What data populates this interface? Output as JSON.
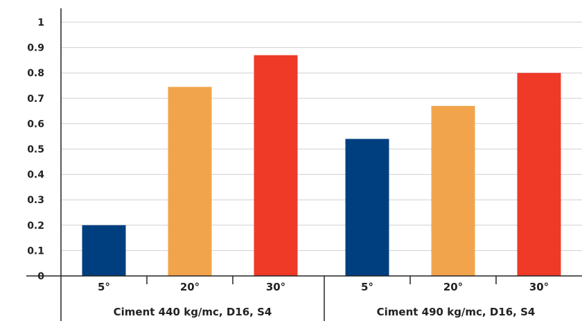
{
  "chart_data": {
    "type": "bar",
    "title": "",
    "xlabel": "",
    "ylabel": "",
    "ylim": [
      0,
      1
    ],
    "yticks": [
      "0",
      "0.1",
      "0.2",
      "0.3",
      "0.4",
      "0.5",
      "0.6",
      "0.7",
      "0.8",
      "0.9",
      "1"
    ],
    "grid": true,
    "legend": "none",
    "groups": [
      {
        "label": "Ciment 440 kg/mc, D16, S4",
        "categories": [
          "5°",
          "20°",
          "30°"
        ],
        "values": [
          0.2,
          0.745,
          0.87
        ],
        "colors": [
          "#003f7f",
          "#f2a44c",
          "#ee3a27"
        ]
      },
      {
        "label": "Ciment 490 kg/mc, D16, S4",
        "categories": [
          "5°",
          "20°",
          "30°"
        ],
        "values": [
          0.54,
          0.67,
          0.8
        ],
        "colors": [
          "#003f7f",
          "#f2a44c",
          "#ee3a27"
        ]
      }
    ]
  }
}
